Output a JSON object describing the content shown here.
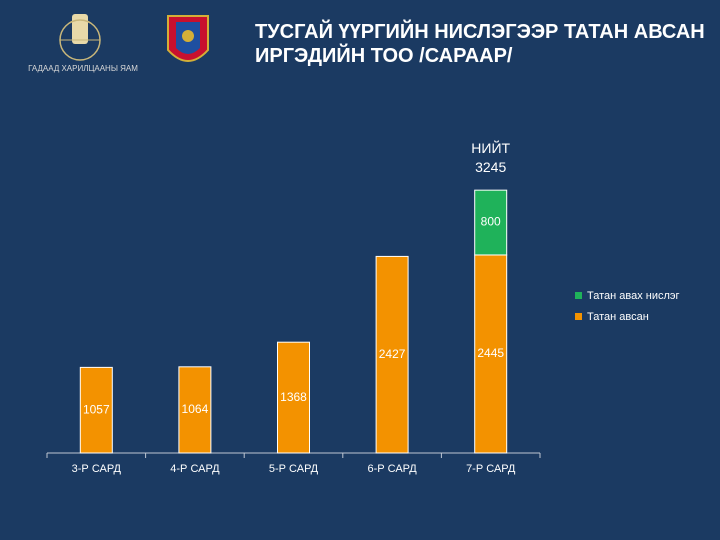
{
  "logo_text": "ГАДААД ХАРИЛЦААНЫ ЯАМ",
  "chart_data": {
    "type": "stacked-bar",
    "title": "ТУСГАЙ ҮҮРГИЙН НИСЛЭГЭЭР ТАТАН АВСАН ИРГЭДИЙН ТОО /САРААР/",
    "categories": [
      "3-Р САРД",
      "4-Р САРД",
      "5-Р САРД",
      "6-Р САРД",
      "7-Р САРД"
    ],
    "series": [
      {
        "name": "Татан авсан",
        "color": "#f39200",
        "values": [
          1057,
          1064,
          1368,
          2427,
          2445
        ]
      },
      {
        "name": "Татан авах нислэг",
        "color": "#1fb25a",
        "values": [
          null,
          null,
          null,
          null,
          800
        ]
      }
    ],
    "total_label": "НИЙТ",
    "total": 3245,
    "ylim": [
      0,
      4000
    ],
    "legend": "right",
    "grid": false
  }
}
